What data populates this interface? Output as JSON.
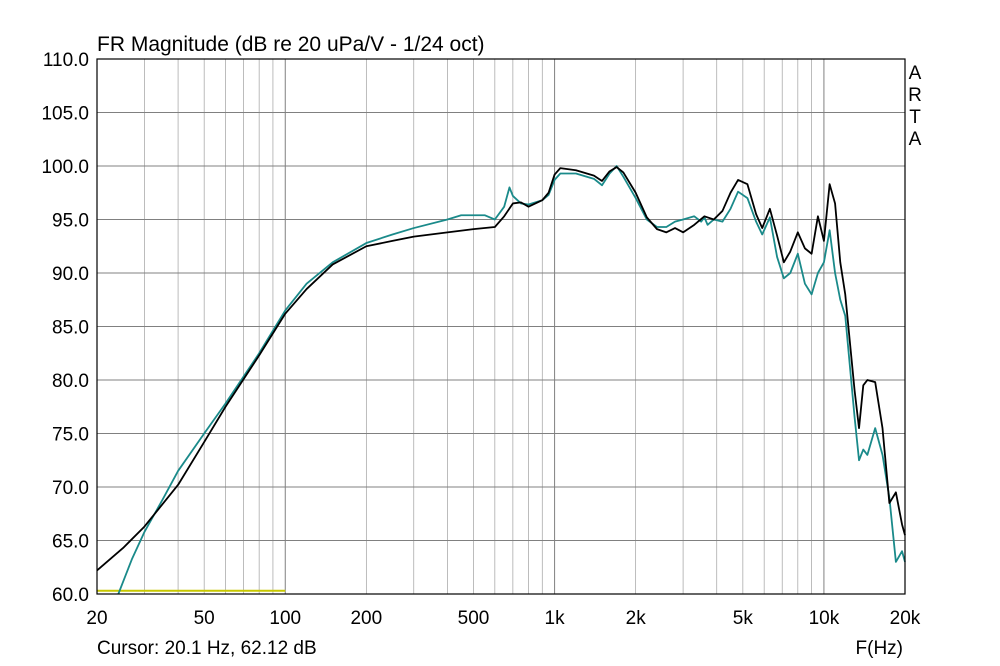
{
  "chart_data": {
    "type": "line",
    "title": "FR Magnitude (dB re 20 uPa/V - 1/24 oct)",
    "xlabel": "F(Hz)",
    "ylabel": "",
    "xscale": "log",
    "xlim": [
      20,
      20000
    ],
    "ylim": [
      60,
      110
    ],
    "grid": true,
    "watermark": "ARTA",
    "cursor_text": "Cursor: 20.1 Hz, 62.12 dB",
    "x_tick_labels": [
      {
        "value": 20,
        "label": "20"
      },
      {
        "value": 50,
        "label": "50"
      },
      {
        "value": 100,
        "label": "100"
      },
      {
        "value": 200,
        "label": "200"
      },
      {
        "value": 500,
        "label": "500"
      },
      {
        "value": 1000,
        "label": "1k"
      },
      {
        "value": 2000,
        "label": "2k"
      },
      {
        "value": 5000,
        "label": "5k"
      },
      {
        "value": 10000,
        "label": "10k"
      },
      {
        "value": 20000,
        "label": "20k"
      }
    ],
    "y_tick_labels": [
      {
        "value": 110,
        "label": "110.0"
      },
      {
        "value": 105,
        "label": "105.0"
      },
      {
        "value": 100,
        "label": "100.0"
      },
      {
        "value": 95,
        "label": "95.0"
      },
      {
        "value": 90,
        "label": "90.0"
      },
      {
        "value": 85,
        "label": "85.0"
      },
      {
        "value": 80,
        "label": "80.0"
      },
      {
        "value": 75,
        "label": "75.0"
      },
      {
        "value": 70,
        "label": "70.0"
      },
      {
        "value": 65,
        "label": "65.0"
      },
      {
        "value": 60,
        "label": "60.0"
      }
    ],
    "colors": {
      "series_black": "#000000",
      "series_teal": "#1a8a8a",
      "marker_yellow": "#c8c800",
      "grid": "#a0a0a0"
    },
    "marker_line": {
      "x": [
        20,
        100
      ],
      "y": 60.3
    },
    "series": [
      {
        "color": "#000000",
        "points": [
          [
            20,
            62.2
          ],
          [
            25,
            64.3
          ],
          [
            30,
            66.3
          ],
          [
            40,
            70.2
          ],
          [
            50,
            74.2
          ],
          [
            60,
            77.5
          ],
          [
            80,
            82.3
          ],
          [
            100,
            86.2
          ],
          [
            120,
            88.5
          ],
          [
            150,
            90.8
          ],
          [
            200,
            92.5
          ],
          [
            250,
            93.0
          ],
          [
            300,
            93.4
          ],
          [
            400,
            93.8
          ],
          [
            500,
            94.1
          ],
          [
            600,
            94.3
          ],
          [
            650,
            95.3
          ],
          [
            700,
            96.5
          ],
          [
            750,
            96.6
          ],
          [
            800,
            96.2
          ],
          [
            900,
            96.8
          ],
          [
            950,
            97.5
          ],
          [
            1000,
            99.2
          ],
          [
            1050,
            99.8
          ],
          [
            1200,
            99.6
          ],
          [
            1400,
            99.1
          ],
          [
            1500,
            98.6
          ],
          [
            1600,
            99.5
          ],
          [
            1700,
            99.9
          ],
          [
            1800,
            99.4
          ],
          [
            2000,
            97.5
          ],
          [
            2200,
            95.2
          ],
          [
            2400,
            94.1
          ],
          [
            2600,
            93.8
          ],
          [
            2800,
            94.2
          ],
          [
            3000,
            93.8
          ],
          [
            3300,
            94.5
          ],
          [
            3600,
            95.3
          ],
          [
            3900,
            95.0
          ],
          [
            4200,
            95.8
          ],
          [
            4500,
            97.5
          ],
          [
            4800,
            98.7
          ],
          [
            5200,
            98.3
          ],
          [
            5600,
            95.5
          ],
          [
            5900,
            94.2
          ],
          [
            6300,
            96.0
          ],
          [
            6700,
            93.5
          ],
          [
            7100,
            91.0
          ],
          [
            7500,
            92.0
          ],
          [
            8000,
            93.8
          ],
          [
            8500,
            92.3
          ],
          [
            9000,
            91.8
          ],
          [
            9500,
            95.3
          ],
          [
            10000,
            93.0
          ],
          [
            10500,
            98.3
          ],
          [
            11000,
            96.5
          ],
          [
            11500,
            91.0
          ],
          [
            12000,
            88.0
          ],
          [
            13000,
            79.0
          ],
          [
            13500,
            75.5
          ],
          [
            14000,
            79.5
          ],
          [
            14500,
            80.0
          ],
          [
            15500,
            79.8
          ],
          [
            16500,
            75.5
          ],
          [
            17500,
            68.5
          ],
          [
            18500,
            69.5
          ],
          [
            19500,
            66.5
          ],
          [
            20000,
            65.5
          ]
        ]
      },
      {
        "color": "#1a8a8a",
        "points": [
          [
            24,
            60.0
          ],
          [
            27,
            63.3
          ],
          [
            30,
            65.8
          ],
          [
            35,
            68.8
          ],
          [
            40,
            71.5
          ],
          [
            50,
            75.0
          ],
          [
            60,
            77.8
          ],
          [
            80,
            82.5
          ],
          [
            100,
            86.5
          ],
          [
            120,
            89.0
          ],
          [
            150,
            91.0
          ],
          [
            200,
            92.8
          ],
          [
            250,
            93.6
          ],
          [
            300,
            94.2
          ],
          [
            400,
            95.0
          ],
          [
            450,
            95.4
          ],
          [
            550,
            95.4
          ],
          [
            600,
            95.0
          ],
          [
            650,
            96.2
          ],
          [
            680,
            98.0
          ],
          [
            700,
            97.2
          ],
          [
            750,
            96.5
          ],
          [
            800,
            96.4
          ],
          [
            900,
            96.8
          ],
          [
            950,
            97.3
          ],
          [
            1000,
            98.7
          ],
          [
            1050,
            99.3
          ],
          [
            1200,
            99.3
          ],
          [
            1400,
            98.8
          ],
          [
            1500,
            98.2
          ],
          [
            1600,
            99.3
          ],
          [
            1700,
            100.0
          ],
          [
            1800,
            99.0
          ],
          [
            2000,
            97.0
          ],
          [
            2200,
            95.0
          ],
          [
            2400,
            94.3
          ],
          [
            2600,
            94.3
          ],
          [
            2800,
            94.8
          ],
          [
            3000,
            95.0
          ],
          [
            3300,
            95.3
          ],
          [
            3500,
            94.8
          ],
          [
            3600,
            95.2
          ],
          [
            3700,
            94.5
          ],
          [
            3900,
            95.0
          ],
          [
            4200,
            94.8
          ],
          [
            4500,
            96.0
          ],
          [
            4800,
            97.6
          ],
          [
            5200,
            97.0
          ],
          [
            5600,
            94.8
          ],
          [
            5900,
            93.6
          ],
          [
            6300,
            95.2
          ],
          [
            6700,
            91.5
          ],
          [
            7100,
            89.5
          ],
          [
            7500,
            90.0
          ],
          [
            8000,
            91.8
          ],
          [
            8500,
            89.0
          ],
          [
            9000,
            88.0
          ],
          [
            9500,
            90.0
          ],
          [
            10000,
            91.0
          ],
          [
            10500,
            94.0
          ],
          [
            11000,
            90.0
          ],
          [
            11500,
            87.5
          ],
          [
            12000,
            86.0
          ],
          [
            13000,
            76.5
          ],
          [
            13500,
            72.5
          ],
          [
            14000,
            73.5
          ],
          [
            14500,
            73.0
          ],
          [
            15500,
            75.5
          ],
          [
            16500,
            73.0
          ],
          [
            17500,
            69.0
          ],
          [
            18500,
            63.0
          ],
          [
            19500,
            64.0
          ],
          [
            20000,
            63.0
          ]
        ]
      }
    ]
  }
}
